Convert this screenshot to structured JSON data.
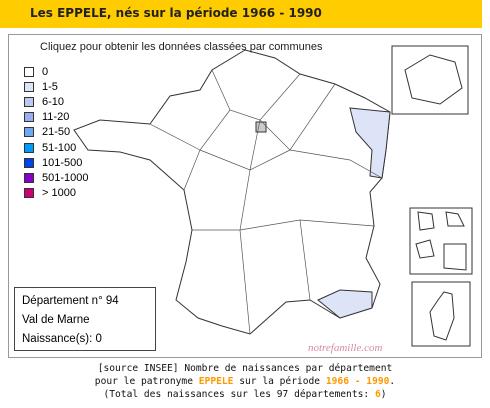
{
  "header": {
    "title": "Les EPPELE, nés sur la période 1966 - 1990"
  },
  "map": {
    "instruction": "Cliquez pour obtenir les données classées par communes",
    "watermark": "notrefamille.com"
  },
  "legend": [
    {
      "label": "0",
      "color": "#ffffff"
    },
    {
      "label": "1-5",
      "color": "#dde4f7"
    },
    {
      "label": "6-10",
      "color": "#bcc8f2"
    },
    {
      "label": "11-20",
      "color": "#99b0ee"
    },
    {
      "label": "21-50",
      "color": "#6fa8f0"
    },
    {
      "label": "51-100",
      "color": "#0099ff"
    },
    {
      "label": "101-500",
      "color": "#0044ee"
    },
    {
      "label": "501-1000",
      "color": "#8800cc"
    },
    {
      "label": "> 1000",
      "color": "#cc0077"
    }
  ],
  "info": {
    "department": "Département n° 94",
    "name": "Val de Marne",
    "births": "Naissance(s): 0"
  },
  "footer": {
    "line1": "[source INSEE] Nombre de naissances par département",
    "line2_prefix": "pour le patronyme",
    "surname": "EPPELE",
    "line2_mid": "sur la période",
    "period": "1966 - 1990",
    "line2_end": ".",
    "line3_prefix": "(Total des naissances sur les 97 départements:",
    "total": "6",
    "line3_end": ")"
  }
}
